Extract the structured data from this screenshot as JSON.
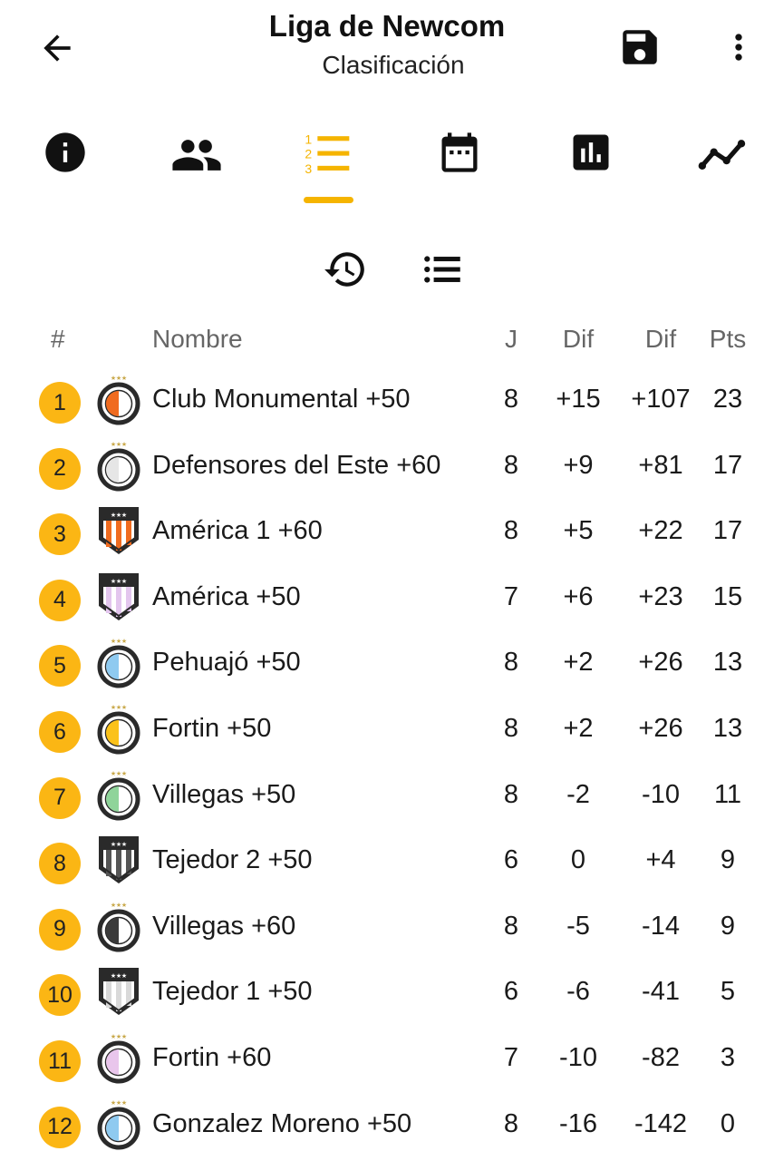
{
  "header": {
    "title": "Liga de Newcom",
    "subtitle": "Clasificación",
    "back_icon": "arrow-back-icon",
    "save_icon": "save-icon",
    "more_icon": "more-vertical-icon"
  },
  "tabs": [
    {
      "icon": "info-icon",
      "selected": false
    },
    {
      "icon": "people-icon",
      "selected": false
    },
    {
      "icon": "ranking-list-icon",
      "selected": true
    },
    {
      "icon": "calendar-icon",
      "selected": false
    },
    {
      "icon": "bar-chart-icon",
      "selected": false
    },
    {
      "icon": "trend-line-icon",
      "selected": false
    }
  ],
  "subtools": [
    {
      "icon": "history-icon"
    },
    {
      "icon": "list-icon"
    }
  ],
  "table": {
    "headers": {
      "pos": "#",
      "name": "Nombre",
      "j": "J",
      "dif1": "Dif",
      "dif2": "Dif",
      "pts": "Pts"
    },
    "rows": [
      {
        "pos": "1",
        "name": "Club Monumental +50",
        "j": "8",
        "dif1": "+15",
        "dif2": "+107",
        "pts": "23",
        "crest": "round",
        "color": "#f06b1f"
      },
      {
        "pos": "2",
        "name": "Defensores del Este +60",
        "j": "8",
        "dif1": "+9",
        "dif2": "+81",
        "pts": "17",
        "crest": "round",
        "color": "#e6e6e6"
      },
      {
        "pos": "3",
        "name": "América 1 +60",
        "j": "8",
        "dif1": "+5",
        "dif2": "+22",
        "pts": "17",
        "crest": "shield",
        "color": "#f06b1f"
      },
      {
        "pos": "4",
        "name": "América +50",
        "j": "7",
        "dif1": "+6",
        "dif2": "+23",
        "pts": "15",
        "crest": "shield",
        "color": "#e3c6ee"
      },
      {
        "pos": "5",
        "name": "Pehuajó +50",
        "j": "8",
        "dif1": "+2",
        "dif2": "+26",
        "pts": "13",
        "crest": "round",
        "color": "#8fcaf0"
      },
      {
        "pos": "6",
        "name": "Fortin +50",
        "j": "8",
        "dif1": "+2",
        "dif2": "+26",
        "pts": "13",
        "crest": "round",
        "color": "#fbc21a"
      },
      {
        "pos": "7",
        "name": "Villegas +50",
        "j": "8",
        "dif1": "-2",
        "dif2": "-10",
        "pts": "11",
        "crest": "round",
        "color": "#8fd49a"
      },
      {
        "pos": "8",
        "name": "Tejedor 2 +50",
        "j": "6",
        "dif1": "0",
        "dif2": "+4",
        "pts": "9",
        "crest": "shield",
        "color": "#555555"
      },
      {
        "pos": "9",
        "name": "Villegas +60",
        "j": "8",
        "dif1": "-5",
        "dif2": "-14",
        "pts": "9",
        "crest": "round",
        "color": "#3a3a3a"
      },
      {
        "pos": "10",
        "name": "Tejedor 1 +50",
        "j": "6",
        "dif1": "-6",
        "dif2": "-41",
        "pts": "5",
        "crest": "shield",
        "color": "#d9d9d9"
      },
      {
        "pos": "11",
        "name": "Fortin +60",
        "j": "7",
        "dif1": "-10",
        "dif2": "-82",
        "pts": "3",
        "crest": "round",
        "color": "#e9c6ec"
      },
      {
        "pos": "12",
        "name": "Gonzalez Moreno +50",
        "j": "8",
        "dif1": "-16",
        "dif2": "-142",
        "pts": "0",
        "crest": "round",
        "color": "#8fcaf0"
      }
    ]
  },
  "colors": {
    "accent": "#f5b400",
    "badge": "#fbb614",
    "icon": "#111111",
    "crest_ring": "#2a2a2a",
    "crest_star": "#c9a94b"
  }
}
